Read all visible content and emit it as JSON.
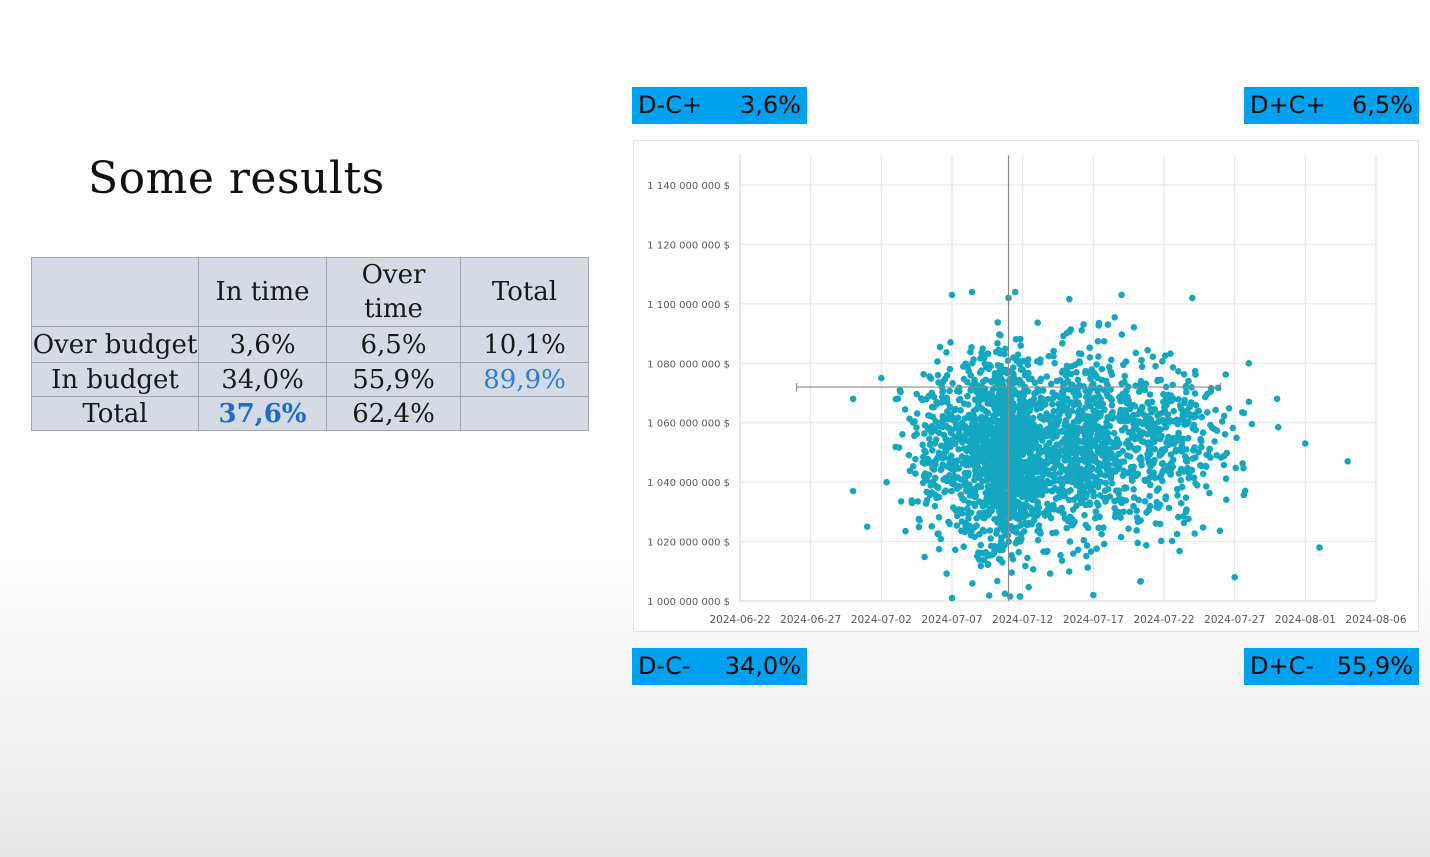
{
  "slide": {
    "title": "Some results"
  },
  "table": {
    "header": [
      "",
      "In time",
      "Over time",
      "Total"
    ],
    "rows": [
      {
        "label": "Over budget",
        "cells": [
          "3,6%",
          "6,5%",
          "10,1%"
        ]
      },
      {
        "label": "In budget",
        "cells": [
          "34,0%",
          "55,9%",
          "89,9%"
        ]
      },
      {
        "label": "Total",
        "cells": [
          "37,6%",
          "62,4%",
          ""
        ]
      }
    ]
  },
  "quadrants": {
    "top_left": {
      "label": "D-C+",
      "value": "3,6%"
    },
    "top_right": {
      "label": "D+C+",
      "value": "6,5%"
    },
    "bottom_left": {
      "label": "D-C-",
      "value": "34,0%"
    },
    "bottom_right": {
      "label": "D+C-",
      "value": "55,9%"
    }
  },
  "colors": {
    "point": "#14a7c2",
    "quadrant_label_bg": "#00a2ef",
    "table_bg": "#d4dbe5",
    "highlight": "#1c6dc9"
  },
  "chart_data": {
    "type": "scatter",
    "title": "",
    "xlabel": "",
    "ylabel": "",
    "grid": true,
    "legend": "none",
    "x_ticks": [
      "2024-06-22",
      "2024-06-27",
      "2024-07-02",
      "2024-07-07",
      "2024-07-12",
      "2024-07-17",
      "2024-07-22",
      "2024-07-27",
      "2024-08-01",
      "2024-08-06"
    ],
    "y_ticks": [
      "1 000 000 000 $",
      "1 020 000 000 $",
      "1 040 000 000 $",
      "1 060 000 000 $",
      "1 080 000 000 $",
      "1 100 000 000 $",
      "1 120 000 000 $",
      "1 140 000 000 $"
    ],
    "xlim": [
      "2024-06-22",
      "2024-08-06"
    ],
    "ylim": [
      1000000000,
      1140000000
    ],
    "reference_lines": {
      "vertical_x": "2024-07-11",
      "horizontal_y": 1072000000
    },
    "crosshair_extent": {
      "x_from": "2024-06-26",
      "x_to": "2024-07-26",
      "y_from": 1000000000,
      "y_to": 1150000000
    },
    "clusters": [
      {
        "center_x": "2024-07-11",
        "center_y": 1050000000,
        "sd_days": 1.3,
        "sd_value": 16000000,
        "count": 1000
      },
      {
        "center_x": "2024-07-16",
        "center_y": 1052000000,
        "sd_days": 1.7,
        "sd_value": 15000000,
        "count": 700
      },
      {
        "center_x": "2024-07-08",
        "center_y": 1050000000,
        "sd_days": 2.2,
        "sd_value": 15000000,
        "count": 500
      },
      {
        "center_x": "2024-07-21",
        "center_y": 1053000000,
        "sd_days": 2.0,
        "sd_value": 14000000,
        "count": 350
      },
      {
        "center_x": "2024-07-25",
        "center_y": 1055000000,
        "sd_days": 2.4,
        "sd_value": 12000000,
        "count": 80
      }
    ],
    "points": [
      {
        "x": "2024-07-07",
        "y": 1103000000
      },
      {
        "x": "2024-07-11",
        "y": 1102000000
      },
      {
        "x": "2024-07-19",
        "y": 1103000000
      },
      {
        "x": "2024-07-24",
        "y": 1102000000
      },
      {
        "x": "2024-07-28",
        "y": 1080000000
      },
      {
        "x": "2024-07-30",
        "y": 1068000000
      },
      {
        "x": "2024-08-01",
        "y": 1053000000
      },
      {
        "x": "2024-08-04",
        "y": 1047000000
      },
      {
        "x": "2024-08-02",
        "y": 1018000000
      },
      {
        "x": "2024-07-27",
        "y": 1008000000
      },
      {
        "x": "2024-06-30",
        "y": 1068000000
      },
      {
        "x": "2024-06-30",
        "y": 1037000000
      },
      {
        "x": "2024-07-02",
        "y": 1075000000
      },
      {
        "x": "2024-07-01",
        "y": 1025000000
      },
      {
        "x": "2024-07-07",
        "y": 1001000000
      },
      {
        "x": "2024-07-17",
        "y": 1002000000
      }
    ]
  }
}
